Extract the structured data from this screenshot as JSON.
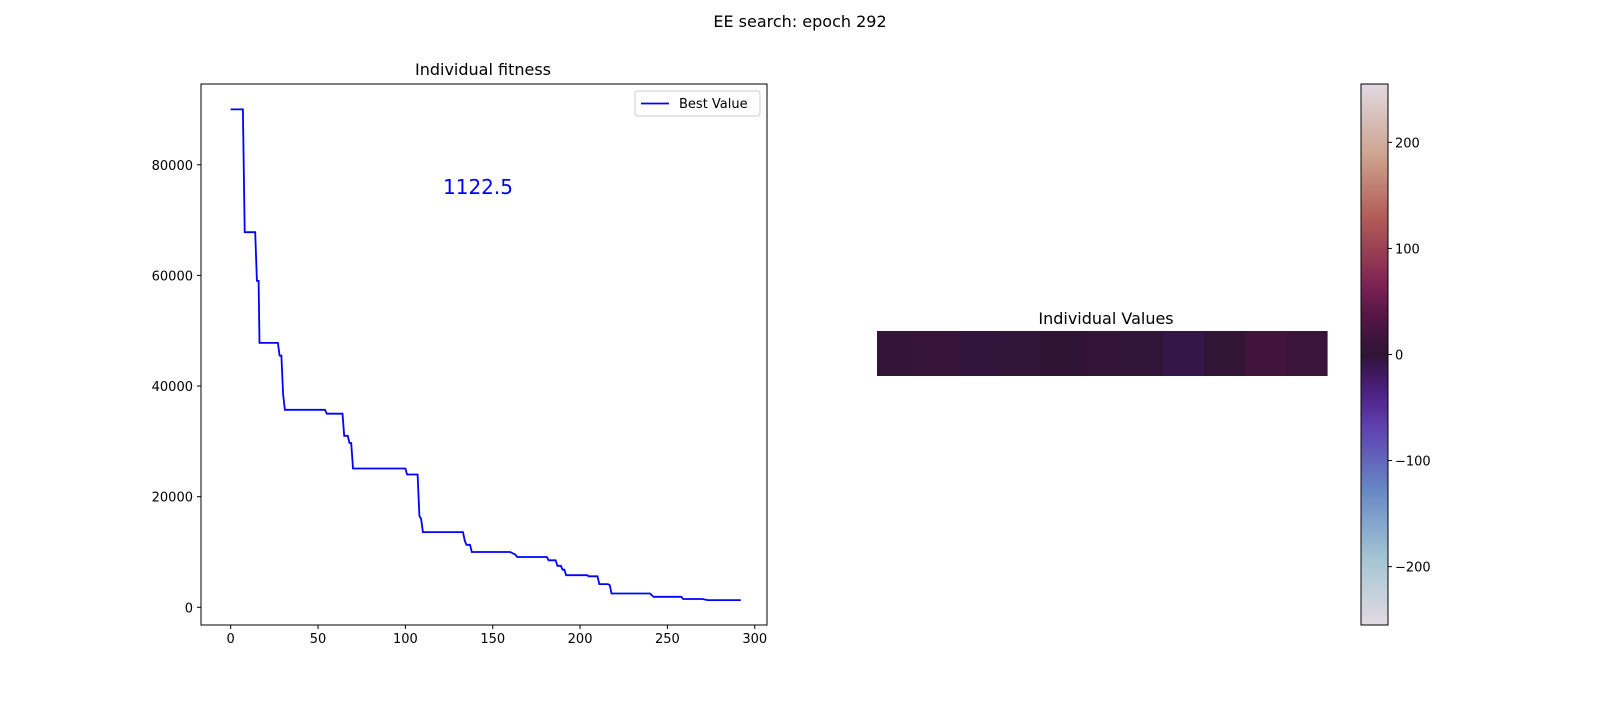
{
  "figure": {
    "suptitle": "EE search: epoch 292"
  },
  "chart_data": [
    {
      "type": "line",
      "title": "Individual fitness",
      "xlabel": "",
      "ylabel": "",
      "xlim": [
        -17,
        307
      ],
      "ylim": [
        -3200,
        94600
      ],
      "xticks": [
        0,
        50,
        100,
        150,
        200,
        250,
        300
      ],
      "xtick_labels": [
        "0",
        "50",
        "100",
        "150",
        "200",
        "250",
        "300"
      ],
      "yticks": [
        0,
        20000,
        40000,
        60000,
        80000
      ],
      "ytick_labels": [
        "0",
        "20000",
        "40000",
        "60000",
        "80000"
      ],
      "grid": false,
      "legend": {
        "entries": [
          "Best Value"
        ],
        "position": "top-right"
      },
      "annotation": {
        "text": "1122.5",
        "x": 143,
        "y": 75500,
        "color": "#0000ff"
      },
      "series": [
        {
          "name": "Best Value",
          "color": "#0000ff",
          "points": [
            [
              0,
              90000
            ],
            [
              7,
              90000
            ],
            [
              8,
              67800
            ],
            [
              14,
              67800
            ],
            [
              15,
              59000
            ],
            [
              16,
              59000
            ],
            [
              16.5,
              47800
            ],
            [
              27,
              47800
            ],
            [
              28,
              45500
            ],
            [
              29,
              45500
            ],
            [
              30,
              38500
            ],
            [
              31,
              35700
            ],
            [
              54,
              35700
            ],
            [
              55,
              35000
            ],
            [
              64,
              35000
            ],
            [
              65,
              31000
            ],
            [
              67,
              31000
            ],
            [
              68,
              29700
            ],
            [
              69,
              29700
            ],
            [
              70,
              25100
            ],
            [
              100,
              25100
            ],
            [
              101,
              24000
            ],
            [
              107,
              24000
            ],
            [
              108,
              16500
            ],
            [
              109,
              16000
            ],
            [
              110,
              13600
            ],
            [
              133,
              13600
            ],
            [
              134,
              12000
            ],
            [
              135,
              11300
            ],
            [
              137,
              11300
            ],
            [
              138,
              10000
            ],
            [
              160,
              10000
            ],
            [
              163,
              9500
            ],
            [
              164,
              9100
            ],
            [
              181,
              9100
            ],
            [
              182,
              8500
            ],
            [
              186,
              8500
            ],
            [
              187,
              7500
            ],
            [
              189,
              7500
            ],
            [
              190,
              6800
            ],
            [
              191,
              6800
            ],
            [
              192,
              5800
            ],
            [
              204,
              5800
            ],
            [
              205,
              5600
            ],
            [
              210,
              5600
            ],
            [
              211,
              4200
            ],
            [
              216,
              4200
            ],
            [
              217,
              4000
            ],
            [
              218,
              2500
            ],
            [
              240,
              2500
            ],
            [
              242,
              1900
            ],
            [
              258,
              1900
            ],
            [
              259,
              1500
            ],
            [
              270,
              1500
            ],
            [
              273,
              1300
            ],
            [
              292,
              1300
            ]
          ]
        }
      ]
    },
    {
      "type": "heatmap",
      "title": "Individual Values",
      "colormap": "twilight",
      "vmin": -255,
      "vmax": 255,
      "values": [
        5,
        8,
        -3,
        2,
        0,
        4,
        2,
        -8,
        3,
        18,
        12
      ],
      "colorbar": {
        "ticks": [
          200,
          100,
          0,
          -100,
          -200
        ],
        "tick_labels": [
          "200",
          "100",
          "0",
          "−100",
          "−200"
        ]
      }
    }
  ]
}
